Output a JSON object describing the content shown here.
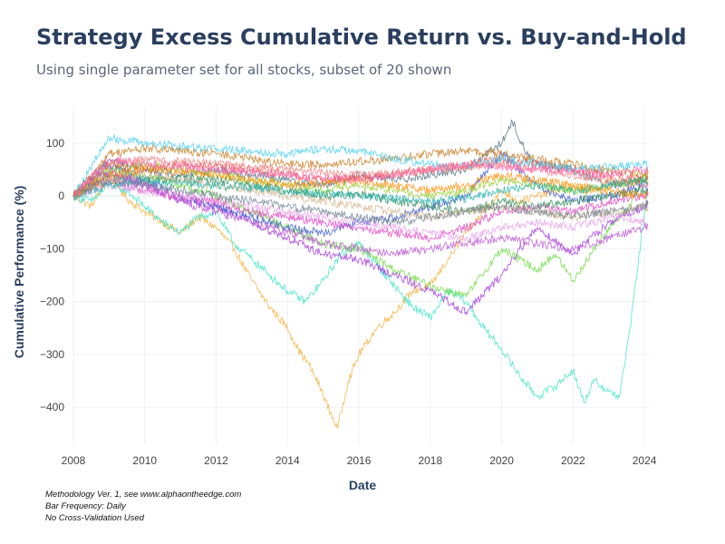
{
  "title": "Strategy Excess Cumulative Return vs. Buy-and-Hold",
  "subtitle": "Using single parameter set for all stocks, subset of 20 shown",
  "notes": [
    "Methodology Ver. 1, see www.alphaontheedge.com",
    "Bar Frequency: Daily",
    "No Cross-Validation Used"
  ],
  "chart_data": {
    "type": "line",
    "title": "Strategy Excess Cumulative Return vs. Buy-and-Hold",
    "xlabel": "Date",
    "ylabel": "Cumulative Performance (%)",
    "xlim": [
      2008,
      2024.15
    ],
    "ylim": [
      -470,
      165
    ],
    "xticks": [
      "2008",
      "2010",
      "2012",
      "2014",
      "2016",
      "2018",
      "2020",
      "2022",
      "2024"
    ],
    "yticks": [
      100,
      0,
      -100,
      -200,
      -300,
      -400
    ],
    "grid": true,
    "legend": "none",
    "series": [
      {
        "color": "#f4b13e",
        "x": [
          2008,
          2008.5,
          2009,
          2009.5,
          2010,
          2010.5,
          2011,
          2011.5,
          2012,
          2012.5,
          2013,
          2013.5,
          2014,
          2014.3,
          2014.6,
          2014.9,
          2015.2,
          2015.4,
          2015.7,
          2016,
          2016.5,
          2017,
          2017.5,
          2018,
          2018.5,
          2019,
          2019.5,
          2020,
          2020.5,
          2021,
          2021.5,
          2022,
          2022.5,
          2023,
          2023.5,
          2024,
          2024.1
        ],
        "y": [
          0,
          -20,
          40,
          -5,
          -30,
          -50,
          -70,
          -40,
          -60,
          -100,
          -160,
          -210,
          -250,
          -290,
          -320,
          -360,
          -410,
          -440,
          -350,
          -300,
          -250,
          -220,
          -180,
          -170,
          -120,
          -70,
          -30,
          10,
          -10,
          0,
          10,
          20,
          5,
          30,
          20,
          40,
          35
        ]
      },
      {
        "color": "#3de3c7",
        "x": [
          2008,
          2008.5,
          2009,
          2009.5,
          2010,
          2010.5,
          2011,
          2011.5,
          2012,
          2012.5,
          2013,
          2013.5,
          2014,
          2014.5,
          2015,
          2015.5,
          2016,
          2016.5,
          2017,
          2017.5,
          2018,
          2018.5,
          2019,
          2019.5,
          2020,
          2020.5,
          2021,
          2021.5,
          2022,
          2022.3,
          2022.6,
          2023,
          2023.3,
          2023.6,
          2024,
          2024.1
        ],
        "y": [
          0,
          -10,
          20,
          10,
          -20,
          -50,
          -70,
          -40,
          -30,
          -90,
          -120,
          -150,
          -180,
          -200,
          -160,
          -110,
          -90,
          -130,
          -170,
          -210,
          -230,
          -180,
          -200,
          -250,
          -290,
          -340,
          -380,
          -360,
          -330,
          -390,
          -350,
          -370,
          -380,
          -250,
          -30,
          10
        ]
      },
      {
        "color": "#6cd941",
        "x": [
          2008,
          2009,
          2010,
          2011,
          2012,
          2013,
          2014,
          2015,
          2016,
          2017,
          2018,
          2019,
          2020,
          2020.5,
          2021,
          2021.5,
          2022,
          2022.5,
          2023,
          2023.5,
          2024,
          2024.1
        ],
        "y": [
          0,
          50,
          40,
          20,
          0,
          -30,
          -60,
          -90,
          -100,
          -140,
          -170,
          -190,
          -100,
          -120,
          -140,
          -110,
          -160,
          -110,
          -60,
          -30,
          40,
          30
        ]
      },
      {
        "color": "#a336e0",
        "x": [
          2008,
          2009,
          2010,
          2011,
          2012,
          2013,
          2014,
          2015,
          2016,
          2017,
          2018,
          2019,
          2020,
          2020.5,
          2021,
          2022,
          2023,
          2024,
          2024.1
        ],
        "y": [
          0,
          40,
          20,
          -10,
          -20,
          -50,
          -80,
          -110,
          -120,
          -150,
          -180,
          -220,
          -150,
          -100,
          -60,
          -110,
          -50,
          -20,
          -10
        ]
      },
      {
        "color": "#3957c9",
        "x": [
          2008,
          2009,
          2010,
          2011,
          2012,
          2013,
          2014,
          2015,
          2016,
          2017,
          2018,
          2019,
          2020,
          2021,
          2022,
          2023,
          2024,
          2024.1
        ],
        "y": [
          0,
          60,
          30,
          0,
          -20,
          -40,
          -60,
          -70,
          -50,
          -40,
          -20,
          0,
          80,
          20,
          -10,
          0,
          20,
          15
        ]
      },
      {
        "color": "#4f6b7f",
        "x": [
          2008,
          2009,
          2010,
          2011,
          2012,
          2013,
          2014,
          2015,
          2016,
          2017,
          2018,
          2019,
          2020,
          2020.3,
          2020.7,
          2021,
          2022,
          2023,
          2024,
          2024.1
        ],
        "y": [
          0,
          70,
          50,
          40,
          50,
          40,
          30,
          20,
          40,
          30,
          40,
          50,
          100,
          140,
          80,
          60,
          50,
          20,
          30,
          25
        ]
      },
      {
        "color": "#e84c4c",
        "x": [
          2008,
          2009,
          2010,
          2011,
          2012,
          2013,
          2014,
          2015,
          2016,
          2017,
          2018,
          2019,
          2020,
          2021,
          2022,
          2023,
          2024,
          2024.1
        ],
        "y": [
          0,
          60,
          50,
          60,
          55,
          50,
          40,
          30,
          35,
          40,
          50,
          60,
          70,
          60,
          50,
          40,
          30,
          35
        ]
      },
      {
        "color": "#c77b1e",
        "x": [
          2008,
          2009,
          2010,
          2011,
          2012,
          2013,
          2014,
          2015,
          2016,
          2017,
          2018,
          2019,
          2020,
          2021,
          2022,
          2023,
          2024,
          2024.1
        ],
        "y": [
          0,
          80,
          90,
          85,
          80,
          70,
          60,
          60,
          65,
          70,
          80,
          85,
          80,
          70,
          60,
          50,
          40,
          45
        ]
      },
      {
        "color": "#4dd0f0",
        "x": [
          2008,
          2009,
          2010,
          2011,
          2012,
          2013,
          2014,
          2015,
          2016,
          2017,
          2018,
          2019,
          2020,
          2021,
          2022,
          2023,
          2024,
          2024.1
        ],
        "y": [
          0,
          110,
          100,
          95,
          90,
          85,
          80,
          90,
          85,
          70,
          60,
          55,
          70,
          60,
          50,
          55,
          60,
          55
        ]
      },
      {
        "color": "#e040c0",
        "x": [
          2008,
          2009,
          2010,
          2011,
          2012,
          2013,
          2014,
          2015,
          2016,
          2017,
          2018,
          2019,
          2020,
          2021,
          2022,
          2023,
          2024,
          2024.1
        ],
        "y": [
          0,
          30,
          10,
          0,
          -10,
          -30,
          -40,
          -50,
          -60,
          -70,
          -80,
          -60,
          -30,
          -20,
          -30,
          -10,
          0,
          5
        ]
      },
      {
        "color": "#9acd32",
        "x": [
          2008,
          2009,
          2010,
          2011,
          2012,
          2013,
          2014,
          2015,
          2016,
          2017,
          2018,
          2019,
          2020,
          2021,
          2022,
          2023,
          2024,
          2024.1
        ],
        "y": [
          0,
          50,
          60,
          50,
          40,
          30,
          20,
          10,
          20,
          10,
          0,
          10,
          30,
          20,
          10,
          20,
          30,
          25
        ]
      },
      {
        "color": "#e8a0e8",
        "x": [
          2008,
          2009,
          2010,
          2011,
          2012,
          2013,
          2014,
          2015,
          2016,
          2017,
          2018,
          2019,
          2020,
          2021,
          2022,
          2023,
          2024,
          2024.1
        ],
        "y": [
          0,
          20,
          10,
          0,
          -10,
          -20,
          -30,
          -40,
          -50,
          -60,
          -70,
          -80,
          -60,
          -50,
          -60,
          -40,
          -50,
          -55
        ]
      },
      {
        "color": "#2e8b57",
        "x": [
          2008,
          2009,
          2010,
          2011,
          2012,
          2013,
          2014,
          2015,
          2016,
          2017,
          2018,
          2019,
          2020,
          2021,
          2022,
          2023,
          2024,
          2024.1
        ],
        "y": [
          0,
          40,
          30,
          35,
          30,
          20,
          10,
          0,
          5,
          -10,
          -20,
          -30,
          -10,
          -20,
          -10,
          0,
          10,
          5
        ]
      },
      {
        "color": "#f08080",
        "x": [
          2008,
          2009,
          2010,
          2011,
          2012,
          2013,
          2014,
          2015,
          2016,
          2017,
          2018,
          2019,
          2020,
          2021,
          2022,
          2023,
          2024,
          2024.1
        ],
        "y": [
          0,
          60,
          70,
          65,
          60,
          55,
          50,
          45,
          40,
          45,
          50,
          55,
          60,
          50,
          40,
          30,
          20,
          25
        ]
      },
      {
        "color": "#d2b48c",
        "x": [
          2008,
          2009,
          2010,
          2011,
          2012,
          2013,
          2014,
          2015,
          2016,
          2017,
          2018,
          2019,
          2020,
          2021,
          2022,
          2023,
          2024,
          2024.1
        ],
        "y": [
          0,
          30,
          40,
          30,
          20,
          10,
          0,
          -10,
          -20,
          -30,
          -40,
          -30,
          -20,
          -30,
          -40,
          -30,
          -20,
          -25
        ]
      },
      {
        "color": "#20b2aa",
        "x": [
          2008,
          2009,
          2010,
          2011,
          2012,
          2013,
          2014,
          2015,
          2016,
          2017,
          2018,
          2019,
          2020,
          2021,
          2022,
          2023,
          2024,
          2024.1
        ],
        "y": [
          0,
          20,
          30,
          25,
          20,
          15,
          10,
          5,
          0,
          -5,
          -10,
          -5,
          10,
          20,
          10,
          20,
          30,
          25
        ]
      },
      {
        "color": "#ba55d3",
        "x": [
          2008,
          2009,
          2010,
          2011,
          2012,
          2013,
          2014,
          2015,
          2016,
          2017,
          2018,
          2019,
          2020,
          2021,
          2022,
          2023,
          2024,
          2024.1
        ],
        "y": [
          0,
          50,
          20,
          -10,
          -30,
          -50,
          -70,
          -90,
          -100,
          -110,
          -100,
          -90,
          -80,
          -90,
          -100,
          -80,
          -60,
          -55
        ]
      },
      {
        "color": "#ff8c00",
        "x": [
          2008,
          2009,
          2010,
          2011,
          2012,
          2013,
          2014,
          2015,
          2016,
          2017,
          2018,
          2019,
          2020,
          2021,
          2022,
          2023,
          2024,
          2024.1
        ],
        "y": [
          0,
          40,
          50,
          45,
          40,
          30,
          20,
          25,
          30,
          20,
          10,
          20,
          40,
          30,
          20,
          10,
          0,
          5
        ]
      },
      {
        "color": "#708090",
        "x": [
          2008,
          2009,
          2010,
          2011,
          2012,
          2013,
          2014,
          2015,
          2016,
          2017,
          2018,
          2019,
          2020,
          2021,
          2022,
          2023,
          2024,
          2024.1
        ],
        "y": [
          0,
          30,
          20,
          10,
          0,
          -10,
          -20,
          -30,
          -40,
          -50,
          -40,
          -30,
          -20,
          -30,
          -40,
          -30,
          -20,
          -15
        ]
      },
      {
        "color": "#ff69b4",
        "x": [
          2008,
          2009,
          2010,
          2011,
          2012,
          2013,
          2014,
          2015,
          2016,
          2017,
          2018,
          2019,
          2020,
          2021,
          2022,
          2023,
          2024,
          2024.1
        ],
        "y": [
          0,
          70,
          60,
          55,
          50,
          45,
          40,
          35,
          30,
          40,
          50,
          60,
          55,
          50,
          45,
          40,
          50,
          45
        ]
      }
    ]
  }
}
